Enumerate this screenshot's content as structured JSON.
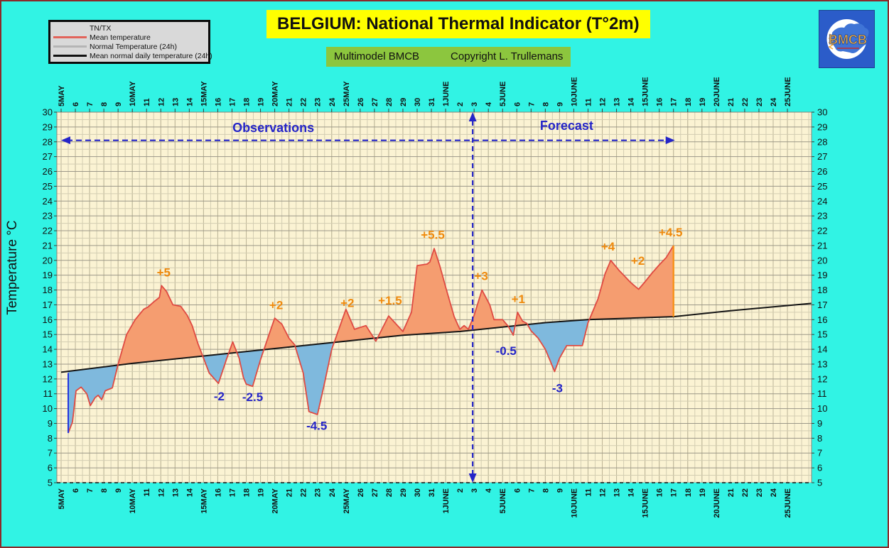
{
  "header": {
    "title": "BELGIUM: National Thermal Indicator (T°2m)",
    "subtitle_left": "Multimodel BMCB",
    "subtitle_right": "Copyright L. Trullemans"
  },
  "legend": {
    "items": [
      {
        "label": "TN/TX",
        "swatch": "none"
      },
      {
        "label": "Mean temperature",
        "swatch": "#e2635a"
      },
      {
        "label": "Normal Temperature (24h)",
        "swatch": "#b5b5b5"
      },
      {
        "label": "Mean normal daily temperature (24h)",
        "swatch": "#111111"
      }
    ]
  },
  "logo": {
    "text": "BMCB"
  },
  "colors": {
    "background": "#31f3e4",
    "frame_border": "#8b2a2b",
    "plot_background": "#fbf3d3",
    "grid_minor": "#d3cdb2",
    "grid_major": "#9b9788",
    "mean_temp_line": "#df4a42",
    "normal_line": "#141414",
    "fill_above": "#f59d70",
    "fill_below": "#7fb9dd",
    "arrow_blue": "#2525c8",
    "annotation_positive": "#ef8a0d",
    "annotation_negative": "#2525c8",
    "title_bg": "#ffff00",
    "subtitle_bg": "#8cc63e",
    "legend_bg": "#d9d9d9",
    "start_edge": "#2233dd",
    "end_edge": "#f7941d"
  },
  "chart_data": {
    "type": "area",
    "title": "BELGIUM: National Thermal Indicator (T°2m)",
    "ylabel": "Temperature °C",
    "ylim": [
      5,
      30
    ],
    "grid": {
      "x_minor_step_days": 0.5,
      "y_minor_step_deg": 0.5,
      "y_major_step_deg": 1
    },
    "x_tick_labels": [
      "5MAY",
      "6",
      "7",
      "8",
      "9",
      "10MAY",
      "11",
      "12",
      "13",
      "14",
      "15MAY",
      "16",
      "17",
      "18",
      "19",
      "20MAY",
      "21",
      "22",
      "23",
      "24",
      "25MAY",
      "26",
      "27",
      "28",
      "29",
      "30",
      "31",
      "1JUNE",
      "2",
      "3",
      "4",
      "5JUNE",
      "6",
      "7",
      "8",
      "9",
      "10JUNE",
      "11",
      "12",
      "13",
      "14",
      "15JUNE",
      "16",
      "17",
      "18",
      "19",
      "20JUNE",
      "21",
      "22",
      "23",
      "24",
      "25JUNE"
    ],
    "y_tick_labels": [
      30,
      29,
      28,
      27,
      26,
      25,
      24,
      23,
      22,
      21,
      20,
      19,
      18,
      17,
      16,
      15,
      14,
      13,
      12,
      11,
      10,
      9,
      8,
      7,
      6,
      5
    ],
    "regions": {
      "observations_label": "Observations",
      "forecast_label": "Forecast",
      "boundary_day_index": 28.9,
      "arrow_temp": 28.1,
      "observations_label_pos": {
        "day": 14.9,
        "temp": 28.95
      },
      "forecast_label_pos": {
        "day": 35.5,
        "temp": 29.1
      },
      "arrow_start_day": 0.0,
      "arrow_end_day": 43.1
    },
    "series": [
      {
        "name": "Mean temperature",
        "points": [
          [
            0.5,
            8.35
          ],
          [
            0.8,
            9.1
          ],
          [
            1.05,
            11.2
          ],
          [
            1.4,
            11.45
          ],
          [
            1.8,
            11.0
          ],
          [
            2.05,
            10.2
          ],
          [
            2.4,
            10.75
          ],
          [
            2.6,
            10.9
          ],
          [
            2.85,
            10.6
          ],
          [
            3.1,
            11.2
          ],
          [
            3.6,
            11.4
          ],
          [
            4.0,
            13.0
          ],
          [
            4.6,
            15.0
          ],
          [
            5.2,
            16.0
          ],
          [
            5.8,
            16.7
          ],
          [
            6.1,
            16.85
          ],
          [
            6.5,
            17.2
          ],
          [
            6.9,
            17.5
          ],
          [
            7.05,
            18.3
          ],
          [
            7.4,
            17.9
          ],
          [
            7.85,
            17.0
          ],
          [
            8.4,
            16.9
          ],
          [
            8.85,
            16.3
          ],
          [
            9.2,
            15.6
          ],
          [
            9.6,
            14.4
          ],
          [
            10.0,
            13.4
          ],
          [
            10.4,
            12.4
          ],
          [
            11.05,
            11.7
          ],
          [
            11.6,
            13.3
          ],
          [
            12.05,
            14.5
          ],
          [
            12.5,
            13.4
          ],
          [
            12.8,
            12.1
          ],
          [
            13.0,
            11.65
          ],
          [
            13.45,
            11.5
          ],
          [
            14.0,
            13.3
          ],
          [
            14.6,
            15.0
          ],
          [
            15.0,
            16.1
          ],
          [
            15.5,
            15.7
          ],
          [
            16.0,
            14.75
          ],
          [
            16.4,
            14.3
          ],
          [
            17.0,
            12.4
          ],
          [
            17.4,
            9.8
          ],
          [
            18.0,
            9.6
          ],
          [
            18.45,
            11.5
          ],
          [
            19.0,
            14.0
          ],
          [
            20.0,
            16.7
          ],
          [
            20.6,
            15.35
          ],
          [
            21.4,
            15.6
          ],
          [
            22.1,
            14.55
          ],
          [
            23.0,
            16.25
          ],
          [
            24.0,
            15.2
          ],
          [
            24.6,
            16.5
          ],
          [
            25.0,
            19.65
          ],
          [
            25.7,
            19.75
          ],
          [
            25.9,
            19.9
          ],
          [
            26.2,
            20.8
          ],
          [
            26.6,
            19.6
          ],
          [
            27.0,
            18.2
          ],
          [
            27.6,
            16.2
          ],
          [
            28.0,
            15.35
          ],
          [
            28.3,
            15.6
          ],
          [
            28.6,
            15.35
          ],
          [
            29.0,
            16.3
          ],
          [
            29.55,
            18.0
          ],
          [
            30.1,
            17.0
          ],
          [
            30.4,
            16.0
          ],
          [
            31.0,
            16.0
          ],
          [
            31.4,
            15.55
          ],
          [
            31.75,
            14.95
          ],
          [
            32.05,
            16.5
          ],
          [
            32.4,
            15.9
          ],
          [
            32.7,
            15.75
          ],
          [
            33.0,
            15.25
          ],
          [
            33.5,
            14.75
          ],
          [
            34.0,
            14.0
          ],
          [
            34.35,
            13.2
          ],
          [
            34.65,
            12.5
          ],
          [
            35.0,
            13.4
          ],
          [
            35.5,
            14.25
          ],
          [
            36.6,
            14.25
          ],
          [
            37.0,
            15.8
          ],
          [
            37.7,
            17.4
          ],
          [
            38.2,
            19.1
          ],
          [
            38.6,
            20.0
          ],
          [
            39.2,
            19.3
          ],
          [
            40.0,
            18.5
          ],
          [
            40.55,
            18.05
          ],
          [
            41.0,
            18.55
          ],
          [
            41.5,
            19.15
          ],
          [
            42.0,
            19.7
          ],
          [
            42.5,
            20.2
          ],
          [
            43.0,
            21.0
          ]
        ]
      },
      {
        "name": "Mean normal daily temperature (24h)",
        "points": [
          [
            0,
            12.45
          ],
          [
            5,
            13.05
          ],
          [
            10,
            13.55
          ],
          [
            15,
            14.05
          ],
          [
            20,
            14.55
          ],
          [
            24,
            14.95
          ],
          [
            28,
            15.2
          ],
          [
            31,
            15.5
          ],
          [
            34,
            15.8
          ],
          [
            37,
            16.0
          ],
          [
            40,
            16.1
          ],
          [
            43,
            16.2
          ],
          [
            47,
            16.6
          ],
          [
            52.7,
            17.1
          ]
        ]
      }
    ],
    "edge_markers": [
      {
        "day": 0.5,
        "temp_from": 12.4,
        "temp_to": 8.35,
        "color_key": "start_edge",
        "width": 2
      },
      {
        "day": 43.0,
        "temp_from": 21.0,
        "temp_to": 16.2,
        "color_key": "end_edge",
        "width": 2.5
      }
    ],
    "annotations": [
      {
        "text": "+5",
        "day": 7.2,
        "temp": 19.2,
        "type": "positive"
      },
      {
        "text": "-2",
        "day": 11.1,
        "temp": 10.85,
        "type": "negative"
      },
      {
        "text": "-2.5",
        "day": 13.45,
        "temp": 10.8,
        "type": "negative"
      },
      {
        "text": "+2",
        "day": 15.1,
        "temp": 17.0,
        "type": "positive"
      },
      {
        "text": "-4.5",
        "day": 17.95,
        "temp": 8.85,
        "type": "negative"
      },
      {
        "text": "+2",
        "day": 20.1,
        "temp": 17.15,
        "type": "positive"
      },
      {
        "text": "+1.5",
        "day": 23.1,
        "temp": 17.3,
        "type": "positive"
      },
      {
        "text": "+5.5",
        "day": 26.1,
        "temp": 21.75,
        "type": "positive"
      },
      {
        "text": "+3",
        "day": 29.5,
        "temp": 18.95,
        "type": "positive"
      },
      {
        "text": "-0.5",
        "day": 31.25,
        "temp": 13.9,
        "type": "negative"
      },
      {
        "text": "+1",
        "day": 32.1,
        "temp": 17.4,
        "type": "positive"
      },
      {
        "text": "-3",
        "day": 34.85,
        "temp": 11.4,
        "type": "negative"
      },
      {
        "text": "+4",
        "day": 38.4,
        "temp": 20.95,
        "type": "positive"
      },
      {
        "text": "+2",
        "day": 40.5,
        "temp": 20.0,
        "type": "positive"
      },
      {
        "text": "+4.5",
        "day": 42.8,
        "temp": 21.9,
        "type": "positive"
      }
    ]
  }
}
